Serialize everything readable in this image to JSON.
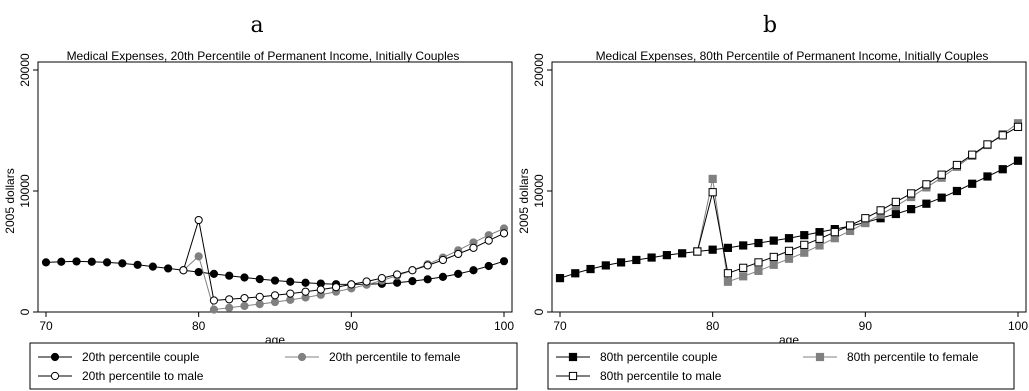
{
  "chart_data": [
    {
      "type": "line",
      "panel_label": "a",
      "title": "Medical Expenses, 20th Percentile of Permanent Income, Initially Couples",
      "xlabel": "age",
      "ylabel": "2005 dollars",
      "xlim": [
        70,
        100
      ],
      "ylim": [
        0,
        20000
      ],
      "xticks": [
        70,
        80,
        90,
        100
      ],
      "yticks": [
        0,
        10000,
        20000
      ],
      "x": [
        70,
        71,
        72,
        73,
        74,
        75,
        76,
        77,
        78,
        79,
        80,
        81,
        82,
        83,
        84,
        85,
        86,
        87,
        88,
        89,
        90,
        91,
        92,
        93,
        94,
        95,
        96,
        97,
        98,
        99,
        100
      ],
      "series": [
        {
          "name": "20th percentile couple",
          "color": "#000000",
          "marker": "circle-filled",
          "x": [
            70,
            71,
            72,
            73,
            74,
            75,
            76,
            77,
            78,
            79,
            80,
            81,
            82,
            83,
            84,
            85,
            86,
            87,
            88,
            89,
            90,
            91,
            92,
            93,
            94,
            95,
            96,
            97,
            98,
            99,
            100
          ],
          "values": [
            4100,
            4150,
            4180,
            4150,
            4100,
            4020,
            3900,
            3750,
            3600,
            3450,
            3300,
            3150,
            3000,
            2850,
            2720,
            2600,
            2500,
            2420,
            2350,
            2300,
            2280,
            2290,
            2330,
            2420,
            2550,
            2700,
            2900,
            3150,
            3450,
            3800,
            4200
          ]
        },
        {
          "name": "20th percentile to female",
          "color": "#808080",
          "marker": "circle-filled",
          "x": [
            79,
            80,
            81,
            82,
            83,
            84,
            85,
            86,
            87,
            88,
            89,
            90,
            91,
            92,
            93,
            94,
            95,
            96,
            97,
            98,
            99,
            100
          ],
          "values": [
            3450,
            4600,
            200,
            350,
            500,
            650,
            820,
            1000,
            1200,
            1420,
            1680,
            1950,
            2250,
            2600,
            3000,
            3450,
            3950,
            4500,
            5100,
            5750,
            6350,
            6900
          ]
        },
        {
          "name": "20th percentile to male",
          "color": "#000000",
          "marker": "circle-open",
          "x": [
            79,
            80,
            81,
            82,
            83,
            84,
            85,
            86,
            87,
            88,
            89,
            90,
            91,
            92,
            93,
            94,
            95,
            96,
            97,
            98,
            99,
            100
          ],
          "values": [
            3450,
            7600,
            950,
            1050,
            1150,
            1250,
            1380,
            1520,
            1680,
            1850,
            2050,
            2280,
            2520,
            2800,
            3100,
            3450,
            3850,
            4300,
            4800,
            5300,
            5900,
            6500
          ]
        }
      ],
      "legend": "bottom"
    },
    {
      "type": "line",
      "panel_label": "b",
      "title": "Medical Expenses, 80th Percentile of Permanent Income, Initially Couples",
      "xlabel": "age",
      "ylabel": "2005 dollars",
      "xlim": [
        70,
        100
      ],
      "ylim": [
        0,
        20000
      ],
      "xticks": [
        70,
        80,
        90,
        100
      ],
      "yticks": [
        0,
        10000,
        20000
      ],
      "series": [
        {
          "name": "80th percentile couple",
          "color": "#000000",
          "marker": "square-filled",
          "x": [
            70,
            71,
            72,
            73,
            74,
            75,
            76,
            77,
            78,
            79,
            80,
            81,
            82,
            83,
            84,
            85,
            86,
            87,
            88,
            89,
            90,
            91,
            92,
            93,
            94,
            95,
            96,
            97,
            98,
            99,
            100
          ],
          "values": [
            2800,
            3200,
            3550,
            3850,
            4100,
            4300,
            4500,
            4700,
            4850,
            5000,
            5150,
            5300,
            5500,
            5700,
            5900,
            6100,
            6350,
            6600,
            6850,
            7100,
            7400,
            7750,
            8100,
            8500,
            8950,
            9450,
            10000,
            10600,
            11200,
            11800,
            12500
          ]
        },
        {
          "name": "80th percentile to female",
          "color": "#808080",
          "marker": "square-filled",
          "x": [
            79,
            80,
            81,
            82,
            83,
            84,
            85,
            86,
            87,
            88,
            89,
            90,
            91,
            92,
            93,
            94,
            95,
            96,
            97,
            98,
            99,
            100
          ],
          "values": [
            5000,
            11000,
            2500,
            2950,
            3400,
            3900,
            4400,
            4900,
            5500,
            6100,
            6700,
            7350,
            8050,
            8750,
            9500,
            10300,
            11100,
            12000,
            12900,
            13800,
            14700,
            15600
          ]
        },
        {
          "name": "80th percentile to male",
          "color": "#000000",
          "marker": "square-open",
          "x": [
            79,
            80,
            81,
            82,
            83,
            84,
            85,
            86,
            87,
            88,
            89,
            90,
            91,
            92,
            93,
            94,
            95,
            96,
            97,
            98,
            99,
            100
          ],
          "values": [
            5000,
            9900,
            3200,
            3650,
            4100,
            4550,
            5050,
            5550,
            6050,
            6600,
            7150,
            7750,
            8400,
            9100,
            9800,
            10550,
            11350,
            12150,
            13000,
            13850,
            14600,
            15300
          ]
        }
      ],
      "legend": "bottom"
    }
  ]
}
